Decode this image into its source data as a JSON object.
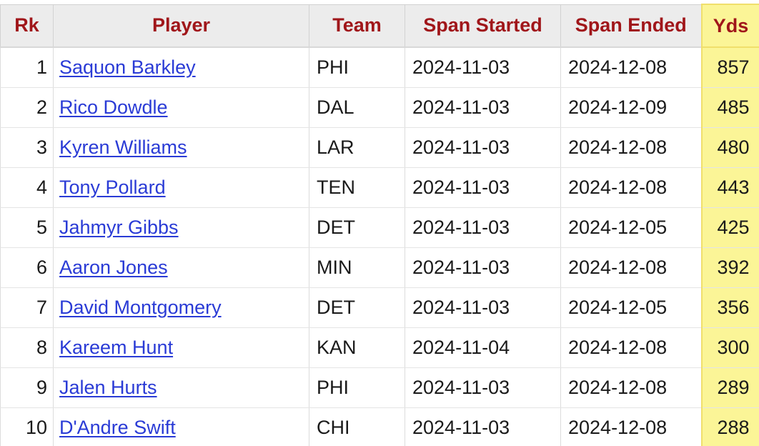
{
  "table": {
    "headers": {
      "rk": "Rk",
      "player": "Player",
      "team": "Team",
      "span_started": "Span Started",
      "span_ended": "Span Ended",
      "yds": "Yds"
    },
    "rows": [
      {
        "rk": "1",
        "player": "Saquon Barkley",
        "team": "PHI",
        "span_started": "2024-11-03",
        "span_ended": "2024-12-08",
        "yds": "857"
      },
      {
        "rk": "2",
        "player": "Rico Dowdle",
        "team": "DAL",
        "span_started": "2024-11-03",
        "span_ended": "2024-12-09",
        "yds": "485"
      },
      {
        "rk": "3",
        "player": "Kyren Williams",
        "team": "LAR",
        "span_started": "2024-11-03",
        "span_ended": "2024-12-08",
        "yds": "480"
      },
      {
        "rk": "4",
        "player": "Tony Pollard",
        "team": "TEN",
        "span_started": "2024-11-03",
        "span_ended": "2024-12-08",
        "yds": "443"
      },
      {
        "rk": "5",
        "player": "Jahmyr Gibbs",
        "team": "DET",
        "span_started": "2024-11-03",
        "span_ended": "2024-12-05",
        "yds": "425"
      },
      {
        "rk": "6",
        "player": "Aaron Jones",
        "team": "MIN",
        "span_started": "2024-11-03",
        "span_ended": "2024-12-08",
        "yds": "392"
      },
      {
        "rk": "7",
        "player": "David Montgomery",
        "team": "DET",
        "span_started": "2024-11-03",
        "span_ended": "2024-12-05",
        "yds": "356"
      },
      {
        "rk": "8",
        "player": "Kareem Hunt",
        "team": "KAN",
        "span_started": "2024-11-04",
        "span_ended": "2024-12-08",
        "yds": "300"
      },
      {
        "rk": "9",
        "player": "Jalen Hurts",
        "team": "PHI",
        "span_started": "2024-11-03",
        "span_ended": "2024-12-08",
        "yds": "289"
      },
      {
        "rk": "10",
        "player": "D'Andre Swift",
        "team": "CHI",
        "span_started": "2024-11-03",
        "span_ended": "2024-12-08",
        "yds": "288"
      }
    ]
  },
  "colors": {
    "header_text": "#a0161a",
    "link": "#2a3bd6",
    "sorted_column_bg": "#fbf597",
    "header_bg": "#ececec"
  }
}
